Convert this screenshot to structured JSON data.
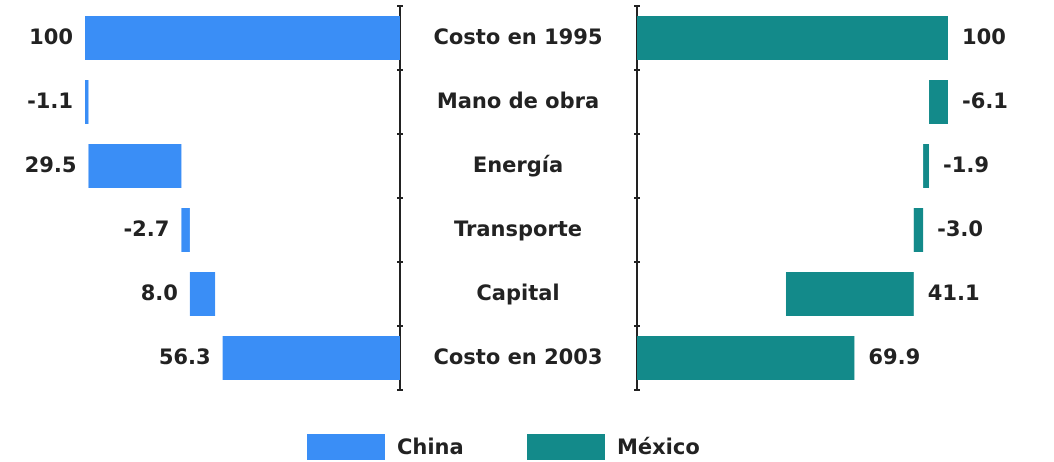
{
  "chart_data": {
    "type": "waterfall",
    "categories": [
      "Costo en 1995",
      "Mano de obra",
      "Energía",
      "Transporte",
      "Capital",
      "Costo en 2003"
    ],
    "series": [
      {
        "name": "China",
        "color": "#3a8ef6",
        "values": [
          100,
          -1.1,
          29.5,
          -2.7,
          8.0,
          56.3
        ],
        "value_labels": [
          "100",
          "-1.1",
          "29.5",
          "-2.7",
          "8.0",
          "56.3"
        ]
      },
      {
        "name": "México",
        "color": "#138a8a",
        "values": [
          100,
          -6.1,
          -1.9,
          -3.0,
          41.1,
          69.9
        ],
        "value_labels": [
          "100",
          "-6.1",
          "-1.9",
          "-3.0",
          "41.1",
          "69.9"
        ]
      }
    ],
    "legend": "bottom"
  }
}
